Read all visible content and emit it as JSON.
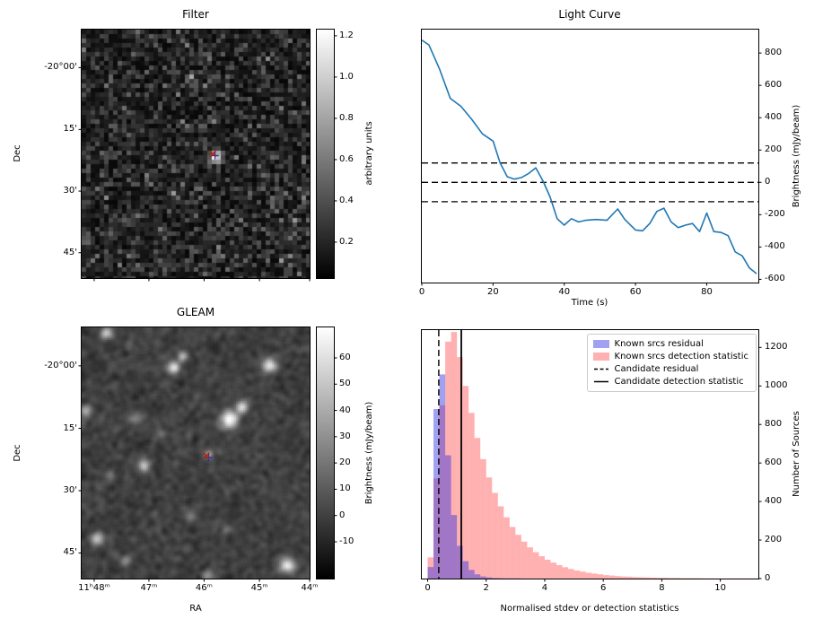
{
  "chart_data": [
    {
      "type": "heatmap",
      "title": "Filter",
      "xlabel": "",
      "ylabel": "Dec",
      "yticks": {
        "labels": [
          "-20°00'",
          "15'",
          "30'",
          "45'"
        ],
        "fracs": [
          0.153,
          0.402,
          0.65,
          0.898
        ]
      },
      "xticks": {
        "labels": [
          "",
          "",
          "",
          "",
          ""
        ],
        "fracs": [
          0.055,
          0.295,
          0.537,
          0.78,
          1.0
        ]
      },
      "colorbar": {
        "label": "arbitrary units",
        "tick_labels": [
          "0.2",
          "0.4",
          "0.6",
          "0.8",
          "1.0",
          "1.2"
        ],
        "tick_values": [
          0.2,
          0.4,
          0.6,
          0.8,
          1.0,
          1.2
        ],
        "vmin": 0.026,
        "vmax": 1.23
      },
      "candidate_marker": {
        "x_frac": 0.575,
        "y_frac": 0.5,
        "x_color": "#bb2200",
        "plus_color": "#2233bb"
      },
      "description": "grayscale matched-filter noise image; bright candidate source at centre marked with red x and blue +"
    },
    {
      "type": "line",
      "title": "Light Curve",
      "xlabel": "Time (s)",
      "ylabel": "Brightness (mJy/beam)",
      "line_color": "#1f77b4",
      "x": [
        0,
        2,
        5,
        8,
        11,
        14,
        17,
        20,
        22,
        24,
        26,
        28,
        30,
        32,
        34,
        36,
        38,
        40,
        42,
        44,
        46,
        49,
        52,
        55,
        57,
        60,
        62,
        64,
        66,
        68,
        70,
        72,
        74,
        76,
        78,
        80,
        82,
        84,
        86,
        88,
        90,
        92,
        94
      ],
      "y": [
        880,
        850,
        700,
        520,
        470,
        390,
        300,
        255,
        120,
        35,
        20,
        30,
        55,
        90,
        10,
        -90,
        -225,
        -265,
        -225,
        -245,
        -235,
        -230,
        -235,
        -165,
        -230,
        -295,
        -300,
        -255,
        -180,
        -160,
        -245,
        -280,
        -265,
        -255,
        -305,
        -190,
        -305,
        -310,
        -330,
        -430,
        -455,
        -530,
        -565
      ],
      "hlines": [
        120,
        0,
        -120
      ],
      "xlim": [
        0,
        94.5
      ],
      "ylim": [
        -620,
        945
      ],
      "xticks": {
        "values": [
          0,
          20,
          40,
          60,
          80
        ],
        "labels": [
          "0",
          "20",
          "40",
          "60",
          "80"
        ]
      },
      "yticks": {
        "values": [
          800,
          600,
          400,
          200,
          0,
          -200,
          -400,
          -600
        ],
        "labels": [
          "800",
          "600",
          "400",
          "200",
          "0",
          "-200",
          "-400",
          "-600"
        ]
      }
    },
    {
      "type": "heatmap",
      "title": "GLEAM",
      "xlabel": "RA",
      "ylabel": "Dec",
      "yticks": {
        "labels": [
          "-20°00'",
          "15'",
          "30'",
          "45'"
        ],
        "fracs": [
          0.153,
          0.402,
          0.65,
          0.898
        ]
      },
      "xticks": {
        "labels": [
          "11ʰ48ᵐ",
          "47ᵐ",
          "46ᵐ",
          "45ᵐ",
          "44ᵐ"
        ],
        "fracs": [
          0.055,
          0.295,
          0.537,
          0.78,
          1.0
        ]
      },
      "colorbar": {
        "label": "Brightness (mJy/beam)",
        "tick_labels": [
          "-10",
          "0",
          "10",
          "20",
          "30",
          "40",
          "50",
          "60"
        ],
        "tick_values": [
          -10,
          0,
          10,
          20,
          30,
          40,
          50,
          60
        ],
        "vmin": -24,
        "vmax": 71.6
      },
      "sources": [
        {
          "x": 0.4,
          "y": 0.155,
          "amp": 55,
          "sig": 5
        },
        {
          "x": 0.44,
          "y": 0.11,
          "amp": 40,
          "sig": 4
        },
        {
          "x": 0.82,
          "y": 0.15,
          "amp": 60,
          "sig": 5.5
        },
        {
          "x": 0.105,
          "y": 0.02,
          "amp": 48,
          "sig": 5
        },
        {
          "x": 0.235,
          "y": 0.36,
          "amp": 26,
          "sig": 4.5
        },
        {
          "x": 0.645,
          "y": 0.365,
          "amp": 70,
          "sig": 7
        },
        {
          "x": 0.7,
          "y": 0.315,
          "amp": 55,
          "sig": 5
        },
        {
          "x": 0.27,
          "y": 0.545,
          "amp": 46,
          "sig": 5
        },
        {
          "x": 0.12,
          "y": 0.585,
          "amp": 20,
          "sig": 4
        },
        {
          "x": 0.475,
          "y": 0.75,
          "amp": 24,
          "sig": 4.5
        },
        {
          "x": 0.065,
          "y": 0.84,
          "amp": 50,
          "sig": 5
        },
        {
          "x": 0.19,
          "y": 0.925,
          "amp": 27,
          "sig": 4.5
        },
        {
          "x": 0.9,
          "y": 0.945,
          "amp": 62,
          "sig": 6
        },
        {
          "x": 0.55,
          "y": 0.985,
          "amp": 32,
          "sig": 4.5
        },
        {
          "x": 0.02,
          "y": 0.33,
          "amp": 42,
          "sig": 4.5
        },
        {
          "x": 0.555,
          "y": 0.5,
          "amp": 32,
          "sig": 3.5
        },
        {
          "x": 0.63,
          "y": 0.8,
          "amp": 18,
          "sig": 4
        },
        {
          "x": 0.345,
          "y": 0.42,
          "amp": 20,
          "sig": 4
        }
      ],
      "candidate_marker": {
        "x_frac": 0.547,
        "y_frac": 0.511,
        "x_color": "#bb2200",
        "plus_color": "#2233bb"
      }
    },
    {
      "type": "bar",
      "title": "",
      "xlabel": "Normalised stdev or detection statistics",
      "ylabel": "Number of Sources",
      "bin_start": 0,
      "bin_width": 0.2,
      "series": [
        {
          "name": "Known srcs residual",
          "color": "#2e2ee0",
          "alpha": 0.45,
          "values": [
            60,
            880,
            1060,
            640,
            330,
            170,
            90,
            45,
            22,
            11,
            6,
            3,
            2,
            1,
            1,
            1
          ]
        },
        {
          "name": "Known srcs detection statistic",
          "color": "#ff3b3b",
          "alpha": 0.4,
          "values": [
            110,
            520,
            900,
            1230,
            1280,
            1150,
            1000,
            860,
            730,
            620,
            525,
            445,
            375,
            318,
            268,
            227,
            192,
            162,
            137,
            116,
            98,
            83,
            70,
            59,
            50,
            42,
            36,
            30,
            26,
            22,
            18,
            16,
            13,
            11,
            10,
            8,
            7,
            6,
            5,
            4,
            4,
            3,
            3,
            2,
            2,
            2,
            2,
            1,
            1,
            1,
            1,
            1,
            1,
            1,
            1,
            1,
            1
          ]
        }
      ],
      "vlines": [
        {
          "name": "Candidate residual",
          "style": "dashed",
          "x": 0.38
        },
        {
          "name": "Candidate detection statistic",
          "style": "solid",
          "x": 1.15
        }
      ],
      "xlim": [
        -0.2,
        11.3
      ],
      "ylim": [
        0,
        1290
      ],
      "xticks": {
        "values": [
          0,
          2,
          4,
          6,
          8,
          10
        ],
        "labels": [
          "0",
          "2",
          "4",
          "6",
          "8",
          "10"
        ]
      },
      "yticks": {
        "values": [
          0,
          200,
          400,
          600,
          800,
          1000,
          1200
        ],
        "labels": [
          "0",
          "200",
          "400",
          "600",
          "800",
          "1000",
          "1200"
        ]
      },
      "legend_position": "upper right"
    }
  ]
}
